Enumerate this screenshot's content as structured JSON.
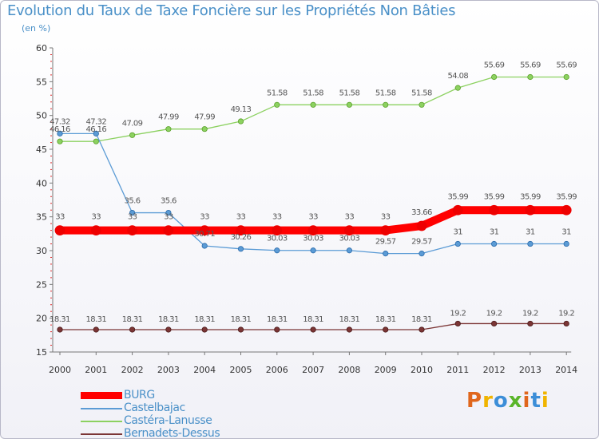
{
  "chart_data": {
    "type": "line",
    "title": "Evolution du Taux de Taxe Foncière sur les Propriétés Non Bâties",
    "ylabel": "(en %)",
    "xlabel": "",
    "ylim": [
      15,
      60
    ],
    "y_ticks": [
      "15",
      "20",
      "25",
      "30",
      "35",
      "40",
      "45",
      "50",
      "55",
      "60"
    ],
    "grid": false,
    "legend_position": "bottom-left",
    "categories": [
      "2000",
      "2001",
      "2002",
      "2003",
      "2004",
      "2005",
      "2006",
      "2007",
      "2008",
      "2009",
      "2010",
      "2011",
      "2012",
      "2013",
      "2014"
    ],
    "series": [
      {
        "name": "BURG",
        "color": "#ff0000",
        "values": [
          33,
          33,
          33,
          33,
          33,
          33,
          33,
          33,
          33,
          33,
          33.66,
          35.99,
          35.99,
          35.99,
          35.99
        ],
        "labels": [
          "33",
          "33",
          "33",
          "33",
          "33",
          "33",
          "33",
          "33",
          "33",
          "33",
          "33.66",
          "35.99",
          "35.99",
          "35.99",
          "35.99"
        ]
      },
      {
        "name": "Castelbajac",
        "color": "#5b9bd5",
        "values": [
          47.32,
          47.32,
          35.6,
          35.6,
          30.71,
          30.26,
          30.03,
          30.03,
          30.03,
          29.57,
          29.57,
          31,
          31,
          31,
          31
        ],
        "labels": [
          "47.32",
          "47.32",
          "35.6",
          "35.6",
          "30.71",
          "30.26",
          "30.03",
          "30.03",
          "30.03",
          "29.57",
          "29.57",
          "31",
          "31",
          "31",
          "31"
        ]
      },
      {
        "name": "Castéra-Lanusse",
        "color": "#8cd160",
        "values": [
          46.16,
          46.16,
          47.09,
          47.99,
          47.99,
          49.13,
          51.58,
          51.58,
          51.58,
          51.58,
          51.58,
          54.08,
          55.69,
          55.69,
          55.69
        ],
        "labels": [
          "46.16",
          "46.16",
          "47.09",
          "47.99",
          "47.99",
          "49.13",
          "51.58",
          "51.58",
          "51.58",
          "51.58",
          "51.58",
          "54.08",
          "55.69",
          "55.69",
          "55.69"
        ]
      },
      {
        "name": "Bernadets-Dessus",
        "color": "#7b3535",
        "values": [
          18.31,
          18.31,
          18.31,
          18.31,
          18.31,
          18.31,
          18.31,
          18.31,
          18.31,
          18.31,
          18.31,
          19.2,
          19.2,
          19.2,
          19.2
        ],
        "labels": [
          "18.31",
          "18.31",
          "18.31",
          "18.31",
          "18.31",
          "18.31",
          "18.31",
          "18.31",
          "18.31",
          "18.31",
          "18.31",
          "19.2",
          "19.2",
          "19.2",
          "19.2"
        ]
      }
    ]
  },
  "logo": {
    "letters": [
      "P",
      "r",
      "o",
      "x",
      "i",
      "t",
      "i"
    ],
    "colors": [
      "#e0661c",
      "#f0b400",
      "#3c8ed8",
      "#5ab52a",
      "#e0661c",
      "#3c8ed8",
      "#f0b400"
    ]
  }
}
